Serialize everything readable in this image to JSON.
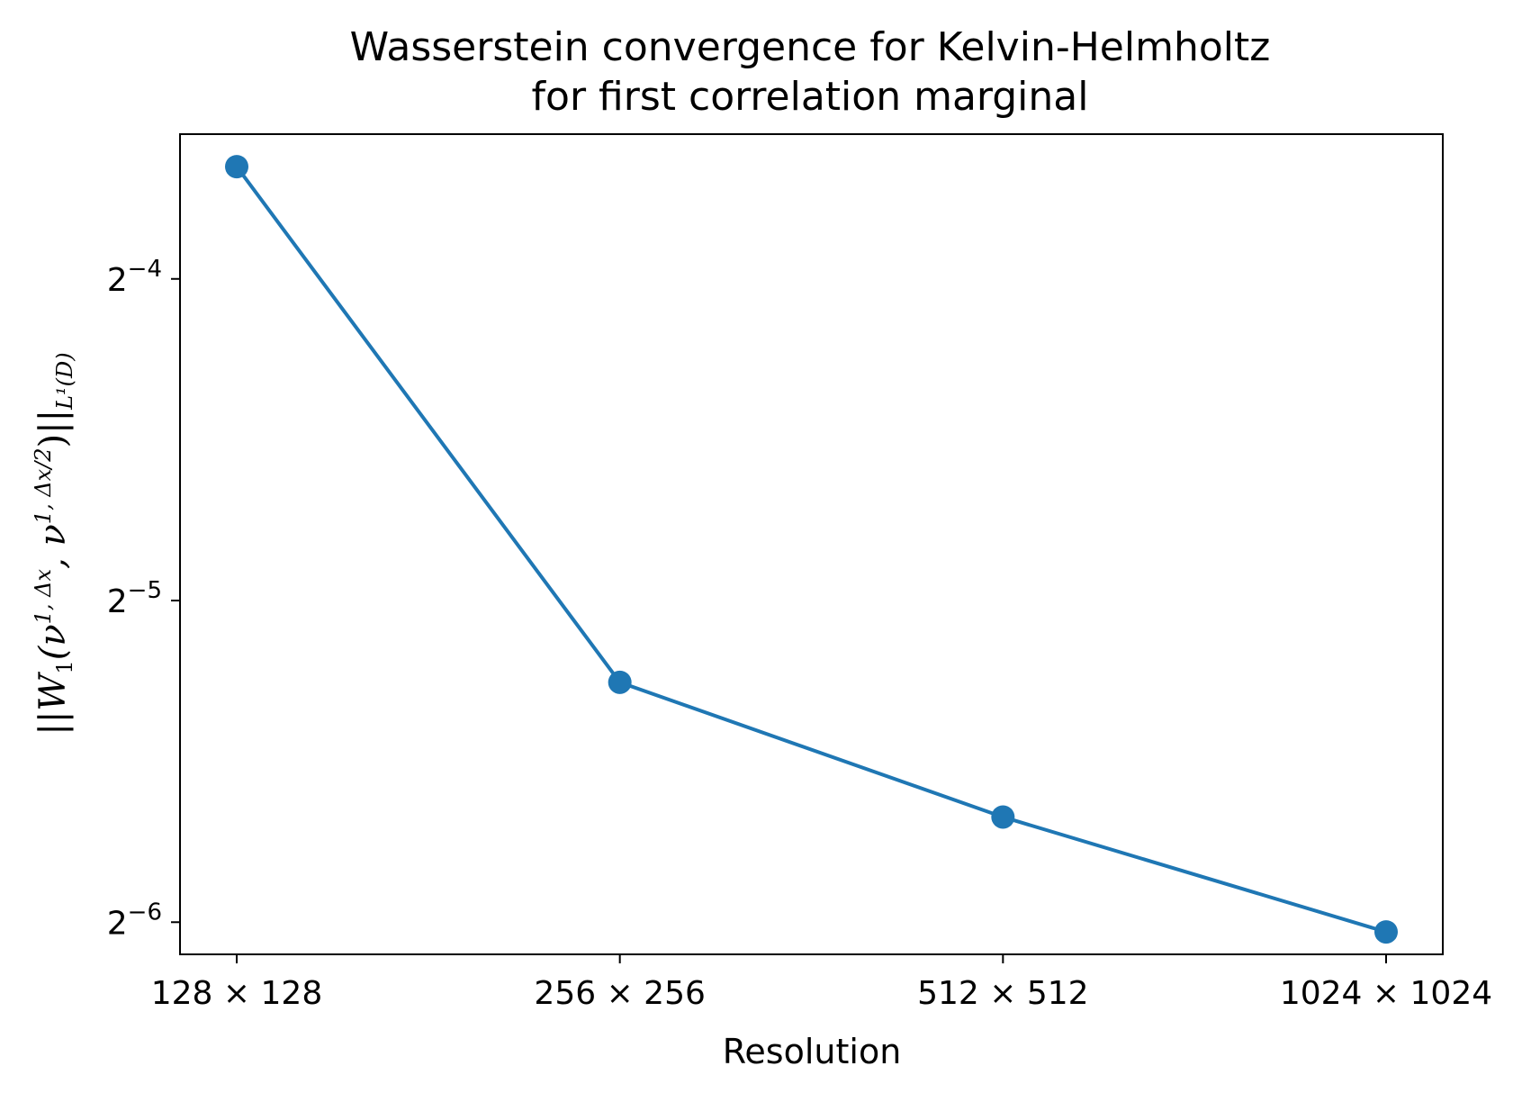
{
  "chart_data": {
    "type": "line",
    "title_lines": [
      "Wasserstein convergence for Kelvin-Helmholtz",
      "for first correlation marginal"
    ],
    "xlabel": "Resolution",
    "ylabel_parts": {
      "pre": "||W",
      "w_sub": "1",
      "open": "(ν",
      "sup1": "1, Δx",
      "comma": ", ν",
      "sup2": "1, Δx/2",
      "close": ")||",
      "norm_sub": "L¹(D)"
    },
    "categories": [
      "128 × 128",
      "256 × 256",
      "512 × 512",
      "1024 × 1024"
    ],
    "y_scale": "log2",
    "ylim_exponent": [
      -6.1,
      -3.55
    ],
    "y_ticks": [
      {
        "base": "2",
        "exp": "−4",
        "value_exp": -4
      },
      {
        "base": "2",
        "exp": "−5",
        "value_exp": -5
      },
      {
        "base": "2",
        "exp": "−6",
        "value_exp": -6
      }
    ],
    "series": [
      {
        "values": [
          0.0796,
          0.0262,
          0.0196,
          0.0153
        ],
        "color": "#1f77b4",
        "marker": "circle"
      }
    ],
    "grid": false,
    "legend": false
  }
}
